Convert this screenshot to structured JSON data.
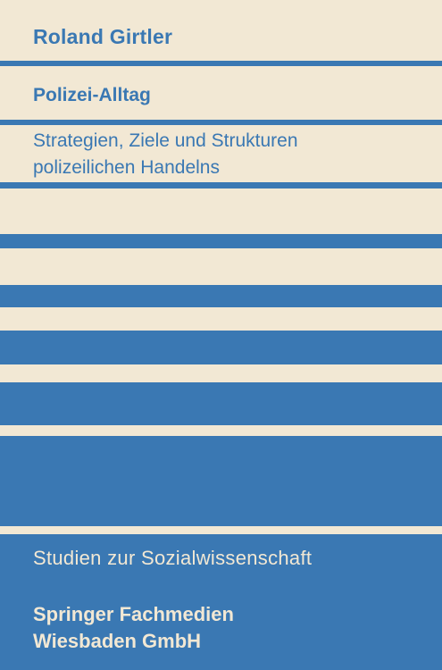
{
  "author": "Roland Girtler",
  "title": "Polizei-Alltag",
  "subtitle": {
    "line1": "Strategien, Ziele und Strukturen",
    "line2": "polizeilichen Handelns"
  },
  "series": "Studien zur Sozialwissenschaft",
  "publisher": {
    "line1": "Springer Fachmedien",
    "line2": "Wiesbaden GmbH"
  },
  "colors": {
    "background": "#f2e8d4",
    "accent_blue": "#3a78b3"
  }
}
